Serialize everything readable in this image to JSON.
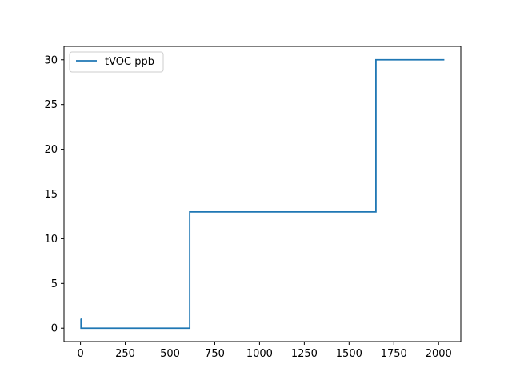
{
  "chart_data": {
    "type": "line",
    "title": "",
    "xlabel": "",
    "ylabel": "",
    "xlim": [
      -92,
      2124
    ],
    "ylim": [
      -1.5,
      31.5
    ],
    "xticks": [
      0,
      250,
      500,
      750,
      1000,
      1250,
      1500,
      1750,
      2000
    ],
    "yticks": [
      0,
      5,
      10,
      15,
      20,
      25,
      30
    ],
    "grid": false,
    "legend_position": "top-left",
    "series": [
      {
        "name": "tVOC ppb",
        "color": "#1f77b4",
        "step": true,
        "x": [
          0,
          3,
          3,
          610,
          610,
          1650,
          1650,
          2032
        ],
        "y": [
          1,
          1,
          0,
          0,
          13,
          13,
          30,
          30
        ]
      }
    ]
  }
}
